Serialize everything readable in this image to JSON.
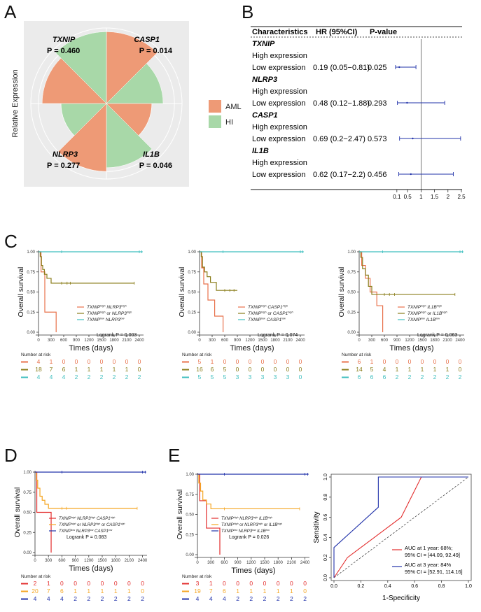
{
  "panels": {
    "A": "A",
    "B": "B",
    "C": "C",
    "D": "D",
    "E": "E"
  },
  "panel_a": {
    "ylabel": "Relative Expression",
    "legend": [
      {
        "label": "AML",
        "color": "#EE9A76"
      },
      {
        "label": "HI",
        "color": "#A8D8A8"
      }
    ],
    "genes": [
      {
        "name": "TXNIP",
        "p": "P = 0.460"
      },
      {
        "name": "CASP1",
        "p": "P = 0.014"
      },
      {
        "name": "NLRP3",
        "p": "P = 0.277"
      },
      {
        "name": "IL1B",
        "p": "P = 0.046"
      }
    ],
    "chart_data": {
      "type": "polar-bar",
      "categories": [
        "CASP1",
        "IL1B",
        "NLRP3",
        "TXNIP"
      ],
      "series": [
        {
          "name": "AML",
          "values": [
            0.95,
            0.6,
            0.9,
            0.85
          ]
        },
        {
          "name": "HI",
          "values": [
            0.75,
            0.85,
            0.6,
            0.95
          ]
        }
      ]
    }
  },
  "panel_b": {
    "header": {
      "char": "Characteristics",
      "hr": "HR (95%CI)",
      "p": "P-value"
    },
    "rows": [
      {
        "gene": "TXNIP",
        "high": "High expression",
        "low": "Low expression",
        "hr": "0.19 (0.05−0.81)",
        "p": "0.025",
        "est": 0.19,
        "lo": 0.05,
        "hi": 0.81
      },
      {
        "gene": "NLRP3",
        "high": "High expression",
        "low": "Low expression",
        "hr": "0.48 (0.12−1.88)",
        "p": "0.293",
        "est": 0.48,
        "lo": 0.12,
        "hi": 1.88
      },
      {
        "gene": "CASP1",
        "high": "High expression",
        "low": "Low expression",
        "hr": "0.69 (0.2−2.47)",
        "p": "0.573",
        "est": 0.69,
        "lo": 0.2,
        "hi": 2.47
      },
      {
        "gene": "IL1B",
        "high": "High expression",
        "low": "Low expression",
        "hr": "0.62 (0.17−2.2)",
        "p": "0.456",
        "est": 0.62,
        "lo": 0.17,
        "hi": 2.2
      }
    ],
    "xticks": [
      "0.1",
      "0.5",
      "1",
      "1.5",
      "2",
      "2.5"
    ],
    "xvals": [
      0.1,
      0.5,
      1,
      1.5,
      2,
      2.5
    ],
    "ref": 1
  },
  "km_common": {
    "ylabel": "Overall survival",
    "xlabel": "Times (days)",
    "yticks": [
      "0.00",
      "0.25",
      "0.50",
      "0.75",
      "1.00"
    ],
    "xticks": [
      "0",
      "300",
      "600",
      "900",
      "1200",
      "1500",
      "1800",
      "2100",
      "2400"
    ],
    "risk_title": "Number at risk"
  },
  "km_panels": [
    {
      "id": "C1",
      "logrank": "Logrank P = 0.003",
      "legend": [
        "TXNIPhigh NLRP3high",
        "TXNIPhigh or NLRP3high",
        "TXNIPlow NLRP3low"
      ],
      "colors": [
        "#E8714B",
        "#8A7D1A",
        "#3FBFBF"
      ],
      "risk": [
        [
          "4",
          "1",
          "0",
          "0",
          "0",
          "0",
          "0",
          "0",
          "0"
        ],
        [
          "18",
          "7",
          "6",
          "1",
          "1",
          "1",
          "1",
          "1",
          "0"
        ],
        [
          "4",
          "4",
          "4",
          "2",
          "2",
          "2",
          "2",
          "2",
          "2"
        ]
      ],
      "curves": [
        [
          [
            0,
            1
          ],
          [
            60,
            1
          ],
          [
            60,
            0.75
          ],
          [
            150,
            0.75
          ],
          [
            150,
            0.25
          ],
          [
            420,
            0.25
          ],
          [
            420,
            0
          ]
        ],
        [
          [
            0,
            1
          ],
          [
            40,
            1
          ],
          [
            40,
            0.94
          ],
          [
            70,
            0.94
          ],
          [
            70,
            0.83
          ],
          [
            100,
            0.83
          ],
          [
            100,
            0.78
          ],
          [
            140,
            0.78
          ],
          [
            140,
            0.72
          ],
          [
            200,
            0.72
          ],
          [
            200,
            0.67
          ],
          [
            300,
            0.67
          ],
          [
            300,
            0.61
          ],
          [
            2280,
            0.61
          ]
        ],
        [
          [
            0,
            1
          ],
          [
            2480,
            1
          ]
        ]
      ],
      "censors": [
        [
          [
            550,
            0.61
          ],
          [
            680,
            0.61
          ],
          [
            760,
            0.61
          ],
          [
            2280,
            0.61
          ]
        ],
        [
          [
            550,
            1
          ],
          [
            2400,
            1
          ],
          [
            2460,
            1
          ]
        ]
      ]
    },
    {
      "id": "C2",
      "logrank": "Logrank P = 0.074",
      "legend": [
        "TXNIPhigh CASP1high",
        "TXNIPhigh or CASP1high",
        "TXNIPlow CASP1low"
      ],
      "colors": [
        "#E8714B",
        "#8A7D1A",
        "#3FBFBF"
      ],
      "risk": [
        [
          "5",
          "1",
          "0",
          "0",
          "0",
          "0",
          "0",
          "0",
          "0"
        ],
        [
          "16",
          "6",
          "5",
          "0",
          "0",
          "0",
          "0",
          "0",
          "0"
        ],
        [
          "5",
          "5",
          "5",
          "3",
          "3",
          "3",
          "3",
          "3",
          "0"
        ]
      ],
      "curves": [
        [
          [
            0,
            1
          ],
          [
            50,
            1
          ],
          [
            50,
            0.8
          ],
          [
            100,
            0.8
          ],
          [
            100,
            0.6
          ],
          [
            200,
            0.6
          ],
          [
            200,
            0.4
          ],
          [
            360,
            0.4
          ],
          [
            360,
            0.2
          ],
          [
            560,
            0.2
          ],
          [
            560,
            0
          ]
        ],
        [
          [
            0,
            1
          ],
          [
            40,
            1
          ],
          [
            40,
            0.94
          ],
          [
            70,
            0.94
          ],
          [
            70,
            0.81
          ],
          [
            120,
            0.81
          ],
          [
            120,
            0.75
          ],
          [
            180,
            0.75
          ],
          [
            180,
            0.69
          ],
          [
            260,
            0.69
          ],
          [
            260,
            0.62
          ],
          [
            400,
            0.62
          ],
          [
            400,
            0.52
          ],
          [
            900,
            0.52
          ]
        ],
        [
          [
            0,
            1
          ],
          [
            2480,
            1
          ]
        ]
      ],
      "censors": [
        [
          [
            600,
            0.52
          ],
          [
            720,
            0.52
          ],
          [
            820,
            0.52
          ]
        ],
        [
          [
            560,
            1
          ],
          [
            2400,
            1
          ],
          [
            2460,
            1
          ]
        ]
      ]
    },
    {
      "id": "C3",
      "logrank": "Logrank P = 0.063",
      "legend": [
        "TXNIPhigh IL1Bhigh",
        "TXNIPhigh or IL1Bhigh",
        "TXNIPlow IL1Blow"
      ],
      "colors": [
        "#E8714B",
        "#8A7D1A",
        "#3FBFBF"
      ],
      "risk": [
        [
          "6",
          "1",
          "0",
          "0",
          "0",
          "0",
          "0",
          "0",
          "0"
        ],
        [
          "14",
          "5",
          "4",
          "1",
          "1",
          "1",
          "1",
          "1",
          "0"
        ],
        [
          "6",
          "6",
          "6",
          "2",
          "2",
          "2",
          "2",
          "2",
          "2"
        ]
      ],
      "curves": [
        [
          [
            0,
            1
          ],
          [
            60,
            1
          ],
          [
            60,
            0.83
          ],
          [
            150,
            0.83
          ],
          [
            150,
            0.67
          ],
          [
            260,
            0.67
          ],
          [
            260,
            0.5
          ],
          [
            420,
            0.5
          ],
          [
            420,
            0.33
          ],
          [
            560,
            0.33
          ],
          [
            560,
            0
          ]
        ],
        [
          [
            0,
            1
          ],
          [
            40,
            1
          ],
          [
            40,
            0.93
          ],
          [
            80,
            0.93
          ],
          [
            80,
            0.79
          ],
          [
            150,
            0.79
          ],
          [
            150,
            0.71
          ],
          [
            220,
            0.71
          ],
          [
            220,
            0.57
          ],
          [
            300,
            0.57
          ],
          [
            300,
            0.47
          ],
          [
            2280,
            0.47
          ]
        ],
        [
          [
            0,
            1
          ],
          [
            2480,
            1
          ]
        ]
      ],
      "censors": [
        [
          [
            600,
            0.47
          ],
          [
            720,
            0.47
          ],
          [
            840,
            0.47
          ],
          [
            2280,
            0.47
          ]
        ],
        [
          [
            560,
            1
          ],
          [
            2400,
            1
          ],
          [
            2460,
            1
          ]
        ]
      ]
    },
    {
      "id": "D",
      "logrank": "Logrank P = 0.083",
      "legend": [
        "TXNIPhigh NLRP3high CASP1high",
        "TXNIPhigh or NLRP3high or CASP1high",
        "TXNIPlow NLRP3low CASP1low"
      ],
      "colors": [
        "#E32D2D",
        "#F5A623",
        "#2233AA"
      ],
      "risk": [
        [
          "2",
          "1",
          "0",
          "0",
          "0",
          "0",
          "0",
          "0",
          "0"
        ],
        [
          "20",
          "7",
          "6",
          "1",
          "1",
          "1",
          "1",
          "1",
          "0"
        ],
        [
          "4",
          "4",
          "4",
          "2",
          "2",
          "2",
          "2",
          "2",
          "2"
        ]
      ],
      "curves": [
        [
          [
            0,
            1
          ],
          [
            40,
            1
          ],
          [
            40,
            0.5
          ],
          [
            360,
            0.5
          ],
          [
            360,
            0
          ]
        ],
        [
          [
            0,
            1
          ],
          [
            30,
            1
          ],
          [
            30,
            0.9
          ],
          [
            60,
            0.9
          ],
          [
            60,
            0.8
          ],
          [
            110,
            0.8
          ],
          [
            110,
            0.7
          ],
          [
            160,
            0.7
          ],
          [
            160,
            0.65
          ],
          [
            220,
            0.65
          ],
          [
            220,
            0.6
          ],
          [
            300,
            0.6
          ],
          [
            300,
            0.55
          ],
          [
            2280,
            0.55
          ]
        ],
        [
          [
            0,
            1
          ],
          [
            2480,
            1
          ]
        ]
      ],
      "censors": [
        [
          [
            600,
            0.55
          ],
          [
            700,
            0.55
          ],
          [
            2280,
            0.55
          ]
        ],
        [
          [
            600,
            1
          ],
          [
            2400,
            1
          ],
          [
            2460,
            1
          ]
        ]
      ]
    },
    {
      "id": "E",
      "logrank": "Logrank P = 0.026",
      "legend": [
        "TXNIPhigh NLRP3high IL1Bhigh",
        "TXNIPhigh or NLRP3high or IL1Bhigh",
        "TXNIPlow NLRP3low IL1Blow"
      ],
      "colors": [
        "#E32D2D",
        "#F5A623",
        "#2233AA"
      ],
      "risk": [
        [
          "3",
          "1",
          "0",
          "0",
          "0",
          "0",
          "0",
          "0",
          "0"
        ],
        [
          "19",
          "7",
          "6",
          "1",
          "1",
          "1",
          "1",
          "1",
          "0"
        ],
        [
          "4",
          "4",
          "4",
          "2",
          "2",
          "2",
          "2",
          "2",
          "2"
        ]
      ],
      "curves": [
        [
          [
            0,
            1
          ],
          [
            50,
            1
          ],
          [
            50,
            0.67
          ],
          [
            200,
            0.67
          ],
          [
            200,
            0.33
          ],
          [
            500,
            0.33
          ],
          [
            500,
            0
          ]
        ],
        [
          [
            0,
            1
          ],
          [
            30,
            1
          ],
          [
            30,
            0.89
          ],
          [
            70,
            0.89
          ],
          [
            70,
            0.79
          ],
          [
            120,
            0.79
          ],
          [
            120,
            0.68
          ],
          [
            200,
            0.68
          ],
          [
            200,
            0.63
          ],
          [
            300,
            0.63
          ],
          [
            300,
            0.57
          ],
          [
            2280,
            0.57
          ]
        ],
        [
          [
            0,
            1
          ],
          [
            2480,
            1
          ]
        ]
      ],
      "censors": [
        [
          [
            600,
            0.57
          ],
          [
            2280,
            0.57
          ]
        ],
        [
          [
            600,
            1
          ],
          [
            2400,
            1
          ],
          [
            2460,
            1
          ]
        ]
      ]
    }
  ],
  "roc": {
    "xlabel": "1-Specificity",
    "ylabel": "Sensitivity",
    "ticks": [
      "0.0",
      "0.2",
      "0.4",
      "0.6",
      "0.8",
      "1.0"
    ],
    "legend": [
      {
        "line1": "AUC at 1 year: 68%;",
        "line2": "95% CI = [44.09, 92.49]",
        "color": "#E32D2D"
      },
      {
        "line1": "AUC at 3 year: 84%",
        "line2": "95% CI = [52.91, 114.16]",
        "color": "#2233AA"
      }
    ],
    "chart_data": {
      "type": "line",
      "series": [
        {
          "name": "1 year",
          "color": "#E32D2D",
          "x": [
            0,
            0.1,
            0.3,
            0.5,
            0.65,
            1
          ],
          "y": [
            0,
            0.2,
            0.4,
            0.6,
            1,
            1
          ]
        },
        {
          "name": "3 year",
          "color": "#2233AA",
          "x": [
            0,
            0,
            0.33,
            0.33,
            1
          ],
          "y": [
            0,
            0.3,
            0.7,
            1,
            1
          ]
        }
      ]
    }
  }
}
